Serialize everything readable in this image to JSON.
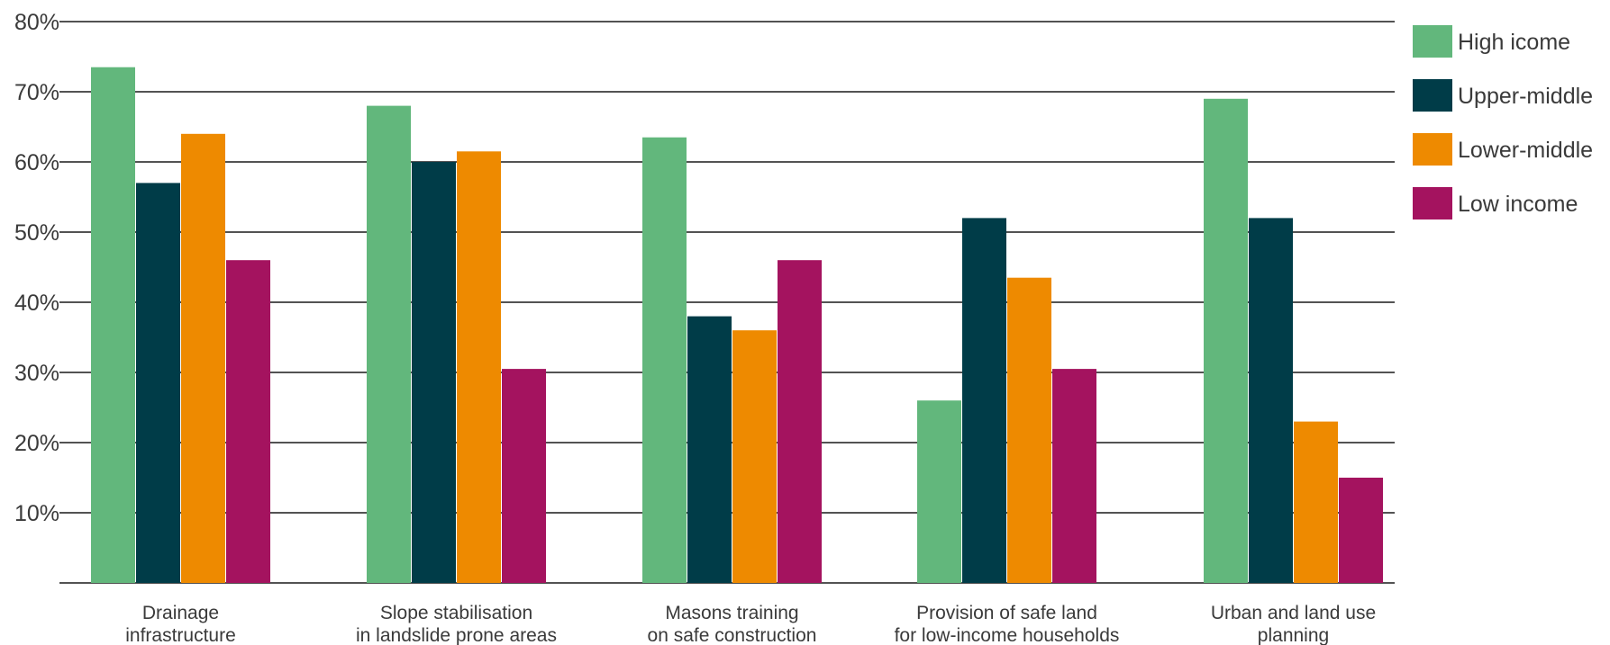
{
  "chart_data": {
    "type": "bar",
    "categories": [
      [
        "Drainage",
        "infrastructure"
      ],
      [
        "Slope stabilisation",
        "in landslide prone areas"
      ],
      [
        "Masons training",
        "on safe construction"
      ],
      [
        "Provision of safe land",
        "for low-income households"
      ],
      [
        "Urban and land use",
        "planning"
      ]
    ],
    "series": [
      {
        "name": "High icome",
        "color": "#62b77c",
        "values": [
          73.5,
          68,
          63.5,
          26,
          69
        ]
      },
      {
        "name": "Upper-middle",
        "color": "#003c48",
        "values": [
          57,
          60,
          38,
          52,
          52
        ]
      },
      {
        "name": "Lower-middle",
        "color": "#ee8a00",
        "values": [
          64,
          61.5,
          36,
          43.5,
          23
        ]
      },
      {
        "name": "Low income",
        "color": "#a4135f",
        "values": [
          46,
          30.5,
          46,
          30.5,
          15
        ]
      }
    ],
    "yticks": [
      "80%",
      "70%",
      "60%",
      "50%",
      "40%",
      "30%",
      "20%",
      "10%"
    ],
    "ylim": [
      0,
      80
    ],
    "grid": true,
    "legend_position": "right"
  }
}
